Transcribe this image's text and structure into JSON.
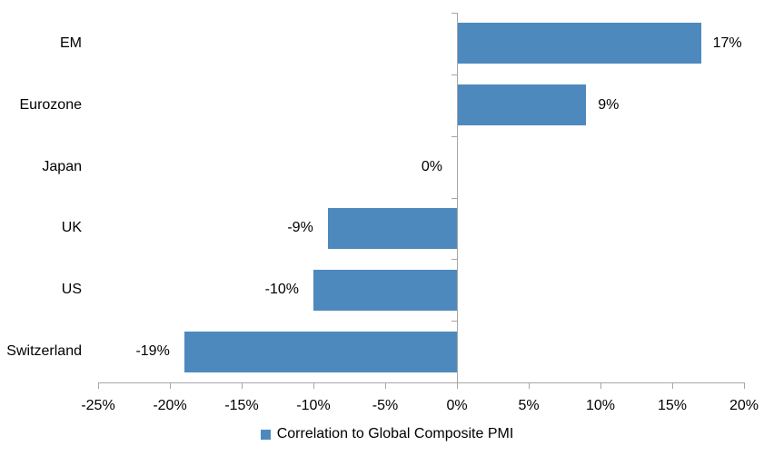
{
  "chart_data": {
    "type": "bar",
    "orientation": "horizontal",
    "categories": [
      "EM",
      "Eurozone",
      "Japan",
      "UK",
      "US",
      "Switzerland"
    ],
    "values": [
      17,
      9,
      0,
      -9,
      -10,
      -19
    ],
    "value_labels": [
      "17%",
      "9%",
      "0%",
      "-9%",
      "-10%",
      "-19%"
    ],
    "xlim": [
      -25,
      20
    ],
    "x_tick_values": [
      -25,
      -20,
      -15,
      -10,
      -5,
      0,
      5,
      10,
      15,
      20
    ],
    "x_tick_labels": [
      "-25%",
      "-20%",
      "-15%",
      "-10%",
      "-5%",
      "0%",
      "5%",
      "10%",
      "15%",
      "20%"
    ],
    "grid": false,
    "legend_position": "bottom-center",
    "legend": [
      {
        "label": "Correlation to Global Composite PMI",
        "color": "#4E89BE"
      }
    ],
    "bar_color": "#4E89BE",
    "axis_color": "#A6A6A6",
    "text_color": "#000000",
    "background_color": "#FFFFFF"
  }
}
